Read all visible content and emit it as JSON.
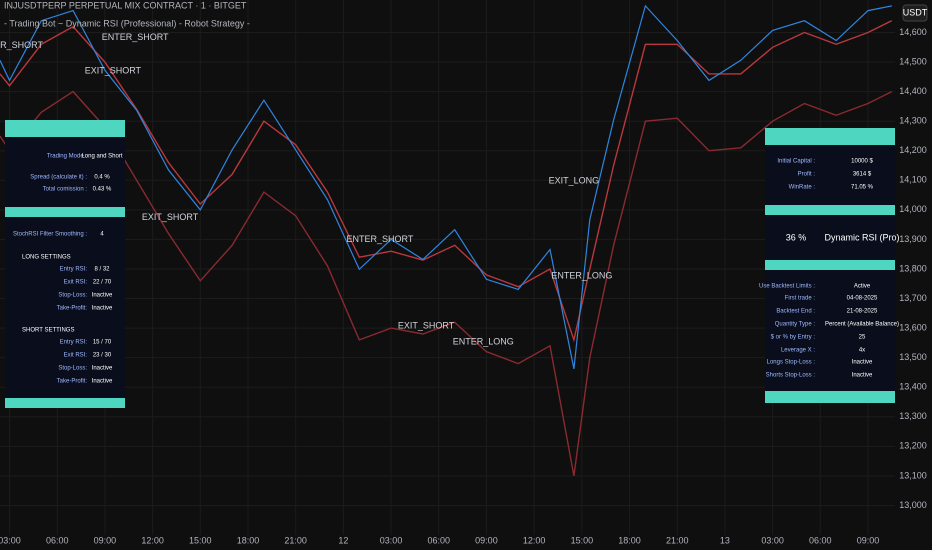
{
  "header": {
    "symbol": "INJUSDTPERP PERPETUAL MIX CONTRACT · 1 · BITGET",
    "strategy": "- Trading Bot ~ Dynamic RSI (Professional) - Robot Strategy -",
    "currency": "USDT"
  },
  "chart_data": {
    "type": "line",
    "x": [
      2.4,
      3,
      5,
      7,
      9,
      11,
      13,
      15,
      17,
      19,
      21,
      23,
      25,
      27,
      29,
      31,
      33,
      35,
      37,
      38.5,
      39.5,
      41,
      43,
      45,
      47,
      49,
      51,
      53,
      55,
      57,
      58.5
    ],
    "series": [
      {
        "color": "#2f86e0",
        "values": [
          14506,
          14438,
          14640,
          14674,
          14472,
          14337,
          14135,
          14000,
          14203,
          14371,
          14203,
          14034,
          13799,
          13900,
          13832,
          13933,
          13765,
          13731,
          13866,
          13462,
          13967,
          14304,
          14690,
          14573,
          14438,
          14506,
          14607,
          14640,
          14573,
          14674,
          14690
        ]
      },
      {
        "color": "#b8383d",
        "values": [
          14460,
          14420,
          14560,
          14620,
          14500,
          14340,
          14160,
          14020,
          14120,
          14300,
          14220,
          14060,
          13840,
          13860,
          13830,
          13880,
          13780,
          13740,
          13800,
          13560,
          13800,
          14150,
          14560,
          14560,
          14460,
          14460,
          14550,
          14600,
          14560,
          14600,
          14640
        ]
      },
      {
        "color": "#8a2a30",
        "values": [
          14250,
          14200,
          14330,
          14400,
          14280,
          14100,
          13920,
          13760,
          13880,
          14060,
          13980,
          13810,
          13560,
          13600,
          13580,
          13620,
          13520,
          13480,
          13540,
          13100,
          13500,
          13880,
          14300,
          14310,
          14200,
          14210,
          14300,
          14360,
          14320,
          14360,
          14400
        ]
      }
    ],
    "xlim": [
      2.4,
      58.7
    ],
    "ylim": [
      12900,
      14710
    ],
    "xticks": [
      {
        "value": 3,
        "label": "03:00"
      },
      {
        "value": 6,
        "label": "06:00"
      },
      {
        "value": 9,
        "label": "09:00"
      },
      {
        "value": 12,
        "label": "12:00"
      },
      {
        "value": 15,
        "label": "15:00"
      },
      {
        "value": 18,
        "label": "18:00"
      },
      {
        "value": 21,
        "label": "21:00"
      },
      {
        "value": 24,
        "label": "12"
      },
      {
        "value": 27,
        "label": "03:00"
      },
      {
        "value": 30,
        "label": "06:00"
      },
      {
        "value": 33,
        "label": "09:00"
      },
      {
        "value": 36,
        "label": "12:00"
      },
      {
        "value": 39,
        "label": "15:00"
      },
      {
        "value": 42,
        "label": "18:00"
      },
      {
        "value": 45,
        "label": "21:00"
      },
      {
        "value": 48,
        "label": "13"
      },
      {
        "value": 51,
        "label": "03:00"
      },
      {
        "value": 54,
        "label": "06:00"
      },
      {
        "value": 57,
        "label": "09:00"
      }
    ],
    "yticks": [
      {
        "value": 13000,
        "label": "13,000"
      },
      {
        "value": 13100,
        "label": "13,100"
      },
      {
        "value": 13200,
        "label": "13,200"
      },
      {
        "value": 13300,
        "label": "13,300"
      },
      {
        "value": 13400,
        "label": "13,400"
      },
      {
        "value": 13500,
        "label": "13,500"
      },
      {
        "value": 13600,
        "label": "13,600"
      },
      {
        "value": 13700,
        "label": "13,700"
      },
      {
        "value": 13800,
        "label": "13,800"
      },
      {
        "value": 13900,
        "label": "13,900"
      },
      {
        "value": 14000,
        "label": "14,000"
      },
      {
        "value": 14100,
        "label": "14,100"
      },
      {
        "value": 14200,
        "label": "14,200"
      },
      {
        "value": 14300,
        "label": "14,300"
      },
      {
        "value": 14400,
        "label": "14,400"
      },
      {
        "value": 14500,
        "label": "14,500"
      },
      {
        "value": 14600,
        "label": "14,600"
      }
    ],
    "grid": true,
    "annotations": [
      {
        "text": "ENTER_SHORT",
        "x": 3.0,
        "y": 14556
      },
      {
        "text": "ENTER_SHORT",
        "x": 10.9,
        "y": 14583
      },
      {
        "text": "EXIT_SHORT",
        "x": 9.5,
        "y": 14469
      },
      {
        "text": "EXIT_SHORT",
        "x": 13.1,
        "y": 13974
      },
      {
        "text": "ENTER_SHORT",
        "x": 26.3,
        "y": 13900
      },
      {
        "text": "EXIT_SHORT",
        "x": 29.2,
        "y": 13607
      },
      {
        "text": "ENTER_LONG",
        "x": 32.8,
        "y": 13553
      },
      {
        "text": "EXIT_LONG",
        "x": 38.5,
        "y": 14098
      },
      {
        "text": "ENTER_LONG",
        "x": 39.0,
        "y": 13775
      }
    ]
  },
  "left_panel": {
    "rows": [
      {
        "label": "Trading Mode :",
        "value": "Long and Short"
      },
      {
        "label": "Spread (calculate it) :",
        "value": "0.4 %"
      },
      {
        "label": "Total comission :",
        "value": "0.43 %"
      },
      {
        "label": "StochRSI Filter Smoothing :",
        "value": "4"
      },
      {
        "heading": "LONG SETTINGS"
      },
      {
        "label": "Entry RSI:",
        "value": "8 / 32"
      },
      {
        "label": "Exit RSI:",
        "value": "22 / 70"
      },
      {
        "label": "Stop-Loss:",
        "value": "Inactive"
      },
      {
        "label": "Take-Profit:",
        "value": "Inactive"
      },
      {
        "heading": "SHORT SETTINGS"
      },
      {
        "label": "Entry RSI:",
        "value": "15 / 70"
      },
      {
        "label": "Exit RSI:",
        "value": "23 / 30"
      },
      {
        "label": "Stop-Loss:",
        "value": "Inactive"
      },
      {
        "label": "Take-Profit:",
        "value": "Inactive"
      }
    ]
  },
  "right_panel": {
    "big": "36 %",
    "name": "Dynamic RSI (Pro)",
    "rows": [
      {
        "label": "Initial Capital :",
        "value": "10000 $"
      },
      {
        "label": "Profit :",
        "value": "3614 $"
      },
      {
        "label": "WinRate :",
        "value": "71.05 %"
      },
      {
        "label": "Use Backtest Limits :",
        "value": "Active"
      },
      {
        "label": "First trade :",
        "value": "04-08-2025"
      },
      {
        "label": "Backtest End :",
        "value": "21-08-2025"
      },
      {
        "label": "Quantity Type :",
        "value": "Percent (Available Balance)"
      },
      {
        "label": "$ or % by Entry :",
        "value": "25"
      },
      {
        "label": "Leverage X :",
        "value": "4x"
      },
      {
        "label": "Longs Stop-Loss :",
        "value": "Inactive"
      },
      {
        "label": "Shorts Stop-Loss :",
        "value": "Inactive"
      }
    ]
  }
}
